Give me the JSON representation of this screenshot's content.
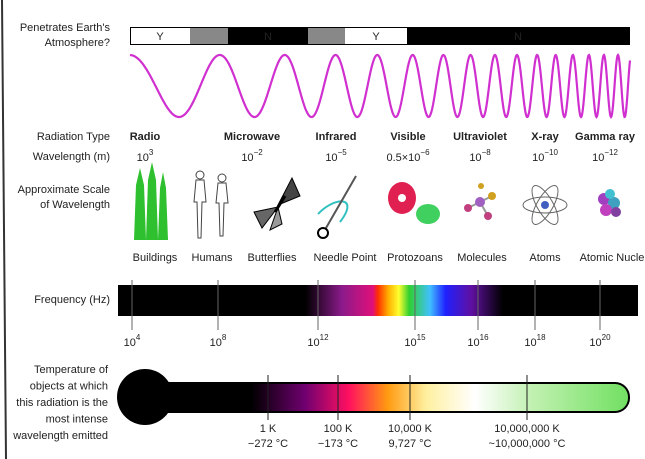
{
  "atmosphere": {
    "label": [
      "Penetrates Earth's",
      "Atmosphere?"
    ],
    "segments": [
      "Y",
      "N",
      "Y",
      "N"
    ]
  },
  "rows": {
    "radiation_type": "Radiation Type",
    "wavelength": "Wavelength (m)",
    "scale": [
      "Approximate Scale",
      "of Wavelength"
    ],
    "frequency": "Frequency (Hz)",
    "temperature": [
      "Temperature of",
      "objects at which",
      "this radiation is the",
      "most intense",
      "wavelength emitted"
    ]
  },
  "bands": [
    {
      "name": "Radio",
      "wavelength": {
        "base": "10",
        "exp": "3"
      }
    },
    {
      "name": "Microwave",
      "wavelength": {
        "base": "10",
        "exp": "−2"
      }
    },
    {
      "name": "Infrared",
      "wavelength": {
        "base": "10",
        "exp": "−5"
      }
    },
    {
      "name": "Visible",
      "wavelength": {
        "base": "0.5×10",
        "exp": "−6"
      }
    },
    {
      "name": "Ultraviolet",
      "wavelength": {
        "base": "10",
        "exp": "−8"
      }
    },
    {
      "name": "X-ray",
      "wavelength": {
        "base": "10",
        "exp": "−10"
      }
    },
    {
      "name": "Gamma ray",
      "wavelength": {
        "base": "10",
        "exp": "−12"
      }
    }
  ],
  "scale_items": [
    "Buildings",
    "Humans",
    "Butterflies",
    "Needle Point",
    "Protozoans",
    "Molecules",
    "Atoms",
    "Atomic Nucle"
  ],
  "frequency_ticks": [
    {
      "base": "10",
      "exp": "4"
    },
    {
      "base": "10",
      "exp": "8"
    },
    {
      "base": "10",
      "exp": "12"
    },
    {
      "base": "10",
      "exp": "15"
    },
    {
      "base": "10",
      "exp": "16"
    },
    {
      "base": "10",
      "exp": "18"
    },
    {
      "base": "10",
      "exp": "20"
    }
  ],
  "temperature_ticks": [
    {
      "kelvin": "1 K",
      "celsius": "−272 °C"
    },
    {
      "kelvin": "100 K",
      "celsius": "−173 °C"
    },
    {
      "kelvin": "10,000 K",
      "celsius": "9,727 °C"
    },
    {
      "kelvin": "10,000,000 K",
      "celsius": "~10,000,000 °C"
    }
  ]
}
